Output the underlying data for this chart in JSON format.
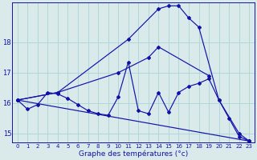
{
  "xlabel": "Graphe des températures (°c)",
  "background_color": "#daeaea",
  "grid_color": "#b0d8d8",
  "line_color": "#1111aa",
  "xlim": [
    -0.5,
    23.5
  ],
  "ylim": [
    14.7,
    19.3
  ],
  "yticks": [
    15,
    16,
    17,
    18
  ],
  "xticks": [
    0,
    1,
    2,
    3,
    4,
    5,
    6,
    7,
    8,
    9,
    10,
    11,
    12,
    13,
    14,
    15,
    16,
    17,
    18,
    19,
    20,
    21,
    22,
    23
  ],
  "series": [
    {
      "x": [
        0,
        1,
        2,
        3,
        4,
        5,
        6,
        7,
        8,
        9,
        10,
        11,
        12,
        13,
        14,
        15,
        16,
        17,
        18,
        19,
        20,
        21,
        22,
        23
      ],
      "y": [
        16.1,
        15.8,
        15.95,
        16.35,
        16.3,
        16.15,
        15.95,
        15.75,
        15.65,
        15.6,
        16.2,
        17.35,
        15.75,
        15.65,
        16.35,
        15.7,
        16.35,
        16.55,
        16.65,
        16.8,
        16.1,
        15.5,
        14.9,
        14.75
      ]
    },
    {
      "x": [
        0,
        4,
        11,
        14,
        15,
        16,
        17,
        18,
        20,
        22,
        23
      ],
      "y": [
        16.1,
        16.35,
        18.1,
        19.1,
        19.2,
        19.2,
        18.8,
        18.5,
        16.1,
        15.0,
        14.75
      ]
    },
    {
      "x": [
        0,
        4,
        10,
        13,
        14,
        19
      ],
      "y": [
        16.1,
        16.35,
        17.0,
        17.5,
        17.85,
        16.9
      ]
    },
    {
      "x": [
        0,
        23
      ],
      "y": [
        16.1,
        14.75
      ]
    }
  ]
}
